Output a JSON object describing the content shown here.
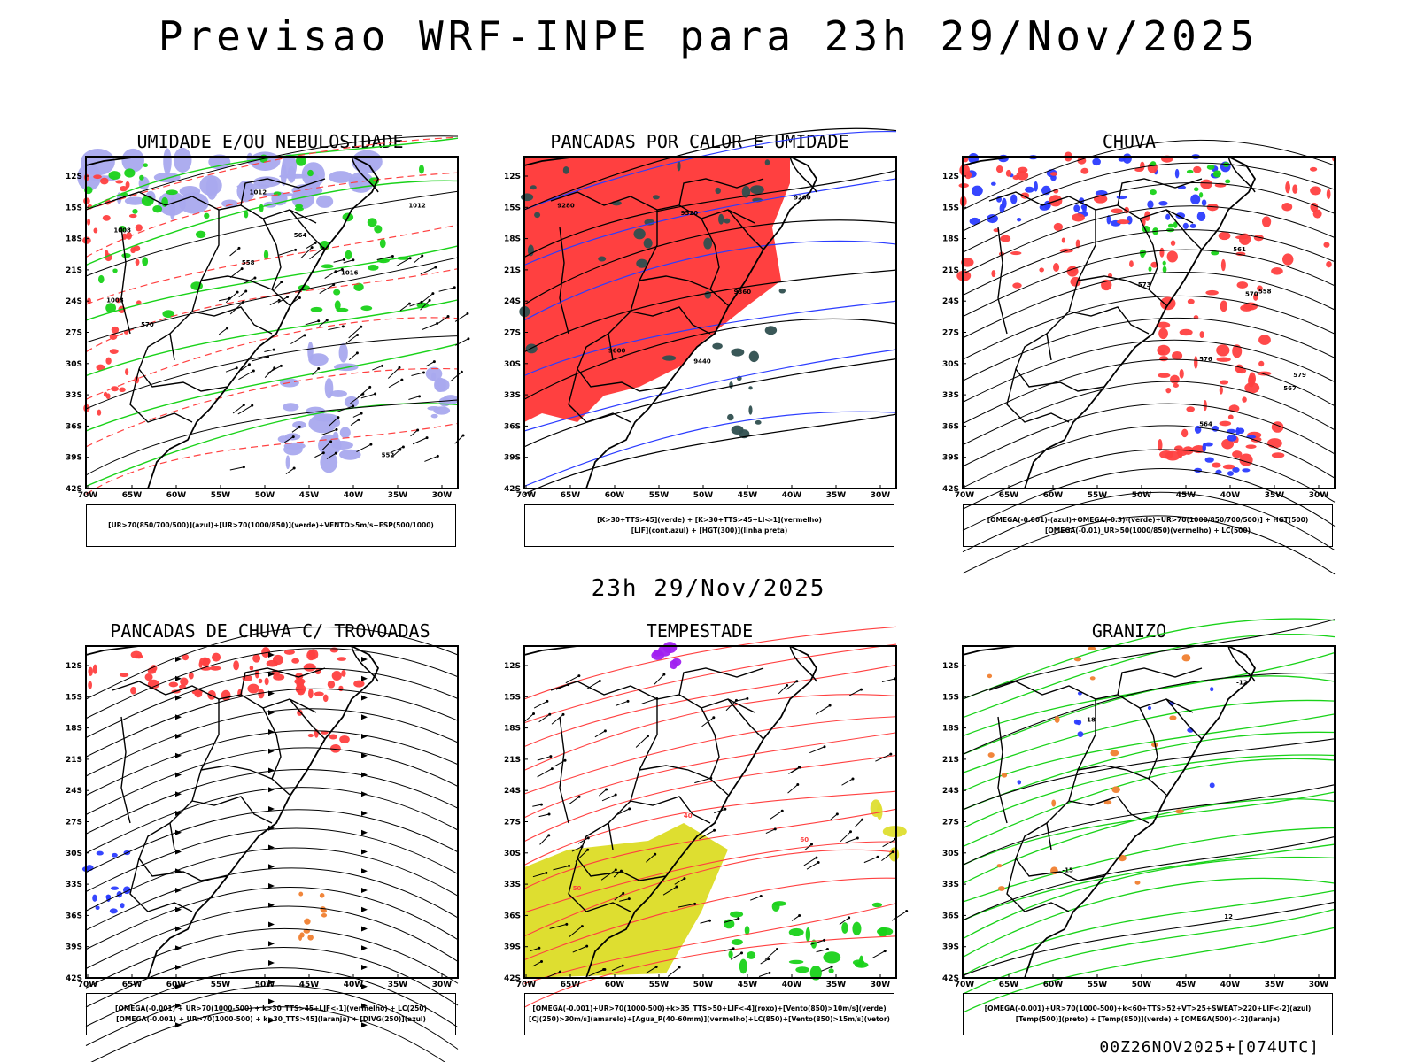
{
  "header": {
    "title": "Previsao WRF-INPE  para 23h 29/Nov/2025",
    "subtitle": "23h 29/Nov/2025",
    "footer": "00Z26NOV2025+[074UTC]"
  },
  "axes": {
    "lat_labels": [
      "12S",
      "15S",
      "18S",
      "21S",
      "24S",
      "27S",
      "30S",
      "33S",
      "36S",
      "39S",
      "42S"
    ],
    "lon_labels": [
      "70W",
      "65W",
      "60W",
      "55W",
      "50W",
      "45W",
      "40W",
      "35W",
      "30W"
    ]
  },
  "colors": {
    "azul": "#2b3cff",
    "verde": "#19d219",
    "vermelho": "#ff4040",
    "laranja": "#f08030",
    "amarelo": "#dede30",
    "roxo": "#a020f0",
    "lavanda": "#a9a9ee",
    "verde_escuro": "#2f4f4f",
    "preto": "#000000"
  },
  "panels": [
    {
      "title": "UMIDADE E/OU NEBULOSIDADE",
      "legend": [
        "[UR>70(850/700/500)](azul)+[UR>70(1000/850)](verde)+VENTO>5m/s+ESP(500/1000)"
      ],
      "contour_labels": [
        "1008",
        "1012",
        "1016",
        "1012",
        "1008",
        "552",
        "570",
        "564",
        "558"
      ]
    },
    {
      "title": "PANCADAS POR CALOR E UMIDADE",
      "legend": [
        "[K>30+TTS>45](verde) + [K>30+TTS>45+LI<-1](vermelho)",
        "[LIF](cont.azul) + [HGT(300)](linha preta)"
      ],
      "contour_labels": [
        "9600",
        "9520",
        "9440",
        "9360",
        "9280",
        "9200"
      ]
    },
    {
      "title": "CHUVA",
      "legend": [
        "[OMEGA(-0.001)-(azul)+OMEGA(-0.3)-(verde)+UR>70(1000/850/700/500)] + HGT(500)",
        "[OMEGA(-0.01)_UR>50(1000/850)(vermelho) + LC(500)"
      ],
      "contour_labels": [
        "576",
        "579",
        "570",
        "567",
        "564",
        "561",
        "558",
        "573"
      ]
    },
    {
      "title": "PANCADAS DE CHUVA C/ TROVOADAS",
      "legend": [
        "[OMEGA(-0.001) + UR>70(1000-500) + k>30_TTS>45+LIF<-1](vermelho) + LC(250)",
        "[OMEGA(-0.001) + UR>70(1000-500) + k>30_TTS>45](laranja) + [DIVG(250)](azul)"
      ],
      "contour_labels": []
    },
    {
      "title": "TEMPESTADE",
      "legend": [
        "[OMEGA(-0.001)+UR>70(1000-500)+k>35_TTS>50+LIF<-4](roxo)+[Vento(850)>10m/s](verde)",
        "[CJ(250)>30m/s](amarelo)+[Agua_P(40-60mm)](vermelho)+LC(850)+[Vento(850)>15m/s](vetor)"
      ],
      "contour_labels": [
        "40",
        "50",
        "60"
      ]
    },
    {
      "title": "GRANIZO",
      "legend": [
        "[OMEGA(-0.001)+UR>70(1000-500)+k<60+TTS>52+VT>25+SWEAT>220+LIF<-2](azul)",
        "[Temp(500)](preto) + [Temp(850)](verde) + [OMEGA(500)<-2](laranja)"
      ],
      "contour_labels": [
        "-12",
        "-15",
        "-18",
        "12"
      ]
    }
  ]
}
